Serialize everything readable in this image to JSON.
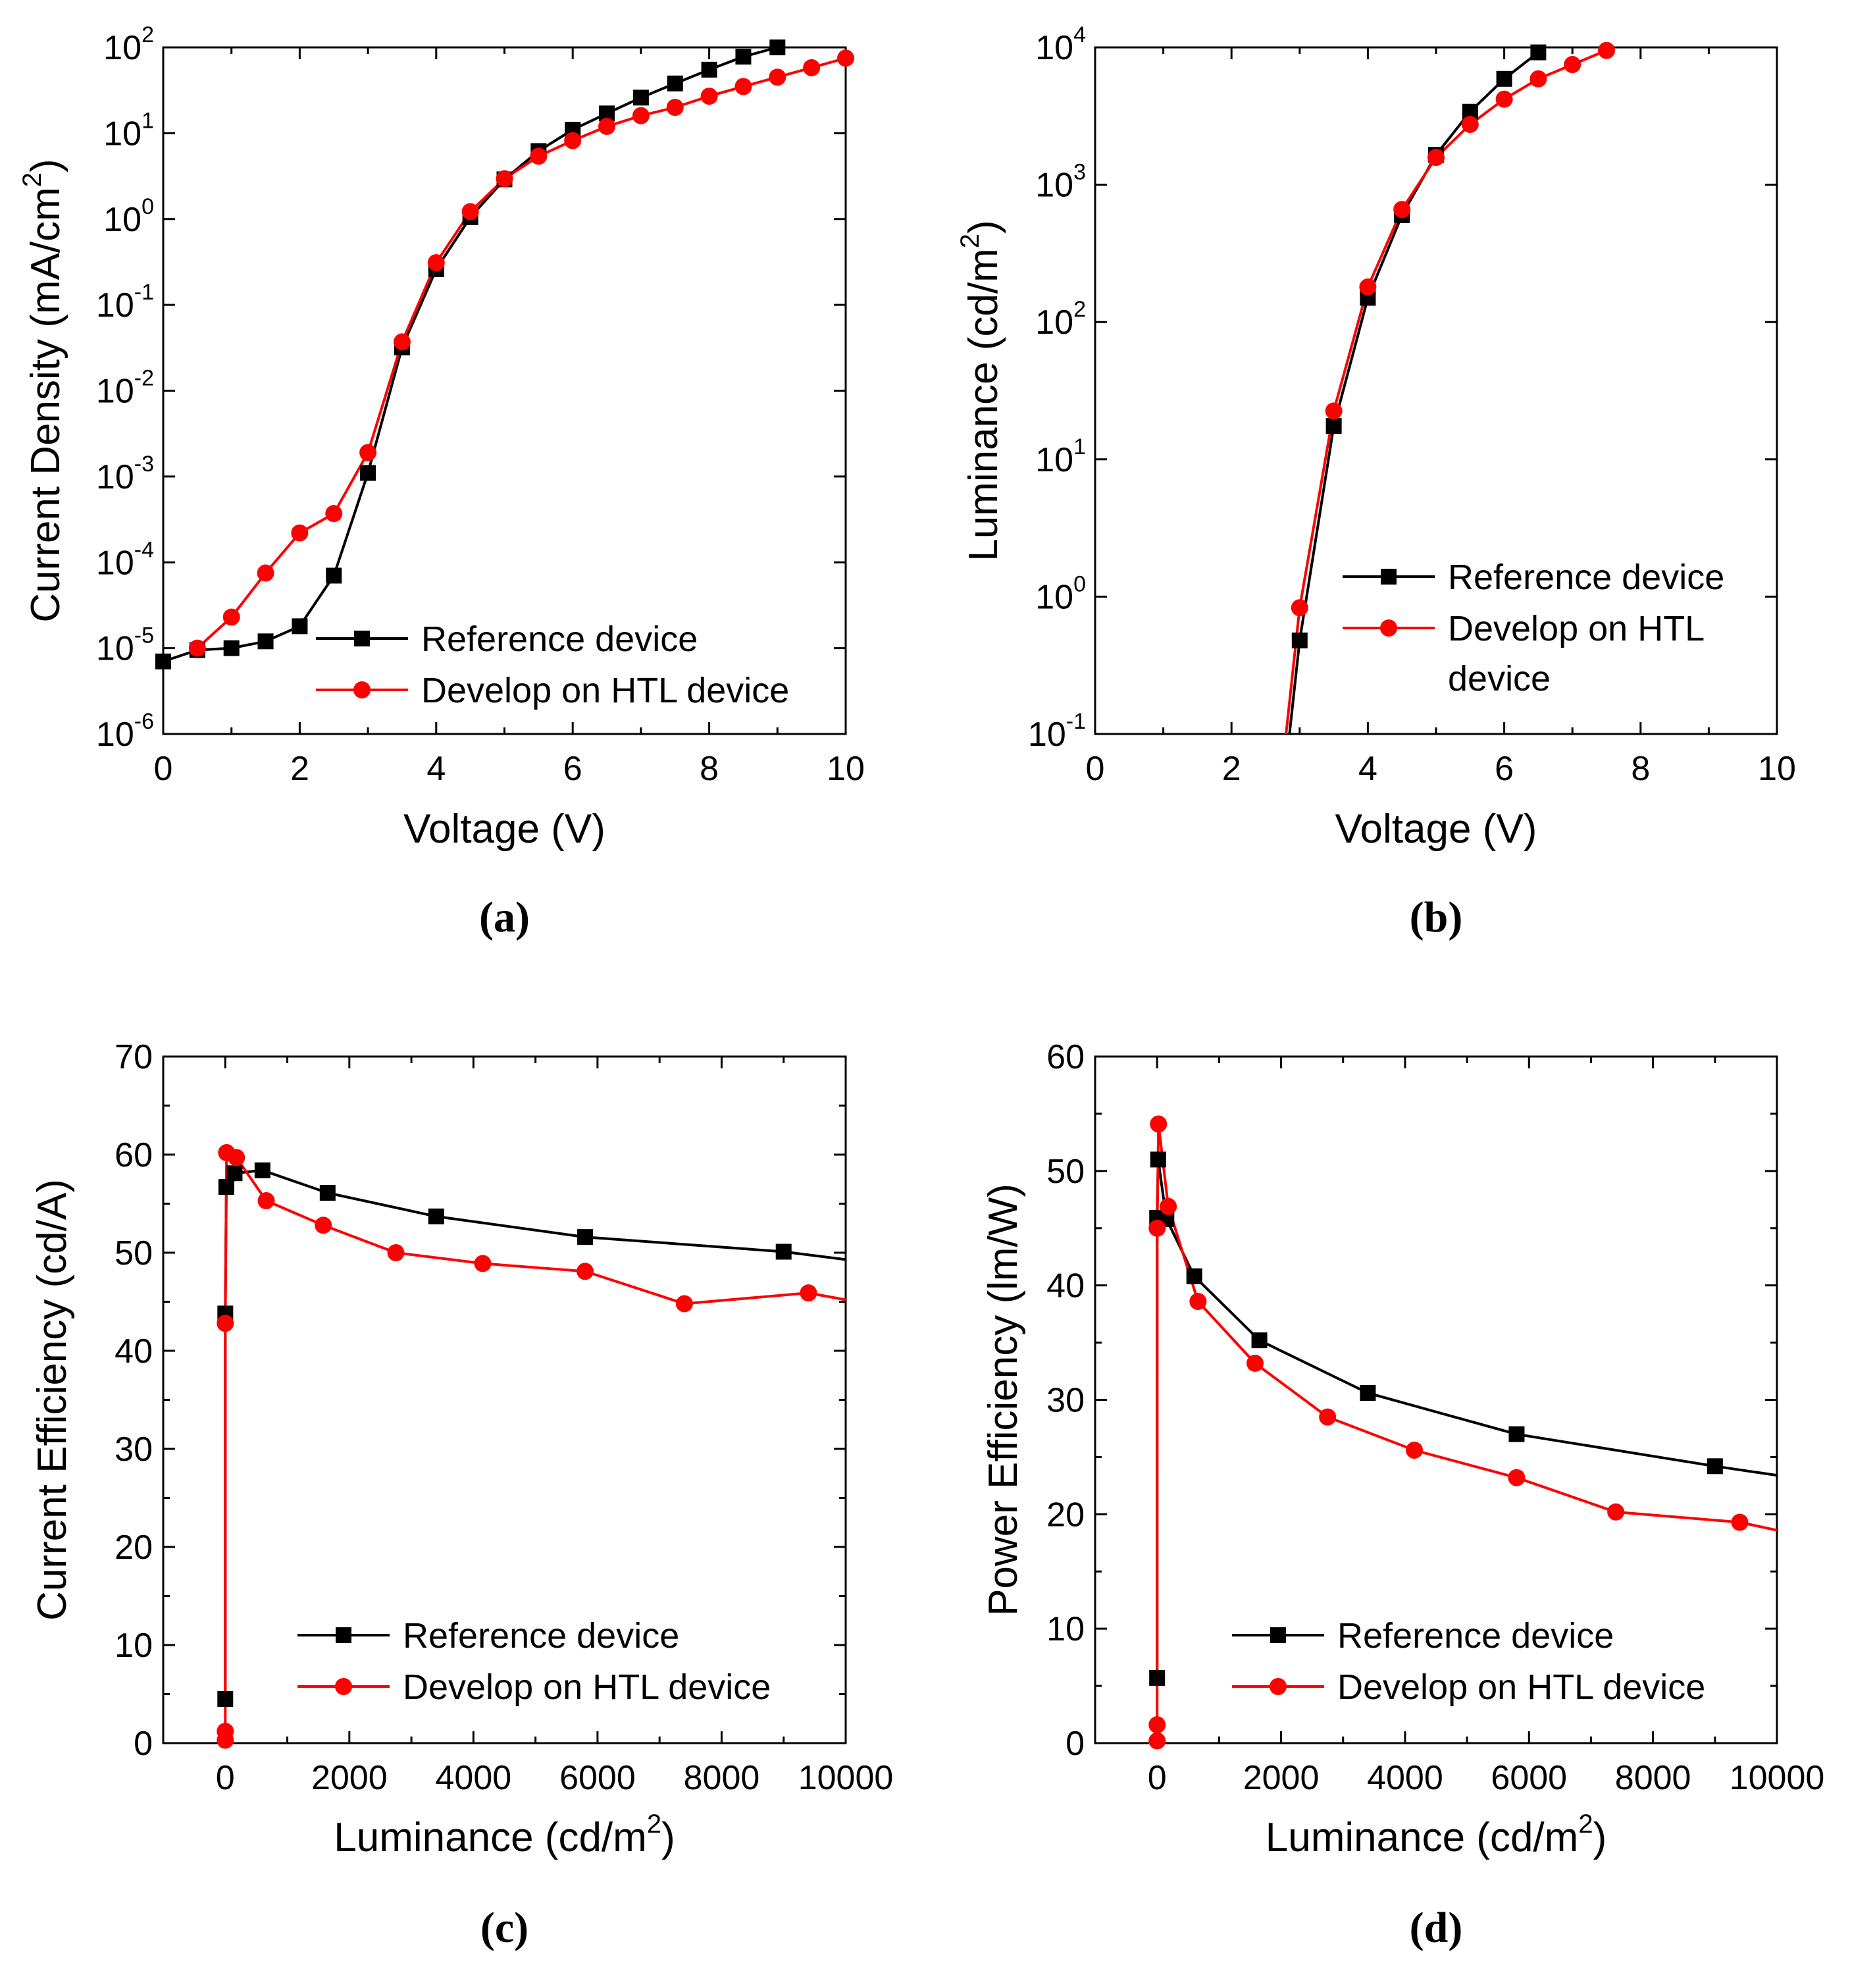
{
  "figure": {
    "legend_entries": [
      "Reference device",
      "Develop on HTL device"
    ],
    "colors": {
      "reference": "#000000",
      "develop": "#ff0000",
      "axis": "#000000"
    }
  },
  "chart_data": [
    {
      "panel": "(a)",
      "type": "line",
      "xlabel": "Voltage (V)",
      "ylabel_base": "Current Density (mA/cm",
      "ylabel_sup": "2",
      "ylabel_end": ")",
      "xscale": "linear",
      "yscale": "log",
      "xlim": [
        0,
        10
      ],
      "ylim": [
        1e-06,
        100
      ],
      "xticks": [
        "0",
        "2",
        "4",
        "6",
        "8",
        "10"
      ],
      "yticks": [
        {
          "base": "10",
          "exp": "-6"
        },
        {
          "base": "10",
          "exp": "-5"
        },
        {
          "base": "10",
          "exp": "-4"
        },
        {
          "base": "10",
          "exp": "-3"
        },
        {
          "base": "10",
          "exp": "-2"
        },
        {
          "base": "10",
          "exp": "-1"
        },
        {
          "base": "10",
          "exp": "0"
        },
        {
          "base": "10",
          "exp": "1"
        },
        {
          "base": "10",
          "exp": "2"
        }
      ],
      "legend_position": "bottom-right",
      "series": [
        {
          "name": "Reference device",
          "marker": "square",
          "x": [
            0,
            0.5,
            1,
            1.5,
            2,
            2.5,
            3,
            3.5,
            4,
            4.5,
            5,
            5.5,
            6,
            6.5,
            7,
            7.5,
            8,
            8.5,
            9
          ],
          "y": [
            7e-06,
            9.5e-06,
            1e-05,
            1.2e-05,
            1.8e-05,
            7e-05,
            0.0011,
            0.032,
            0.26,
            1.05,
            2.9,
            6.2,
            11,
            17,
            26,
            38,
            55,
            78,
            100
          ]
        },
        {
          "name": "Develop on HTL device",
          "marker": "circle",
          "x": [
            0.5,
            1,
            1.5,
            2,
            2.5,
            3,
            3.5,
            4,
            4.5,
            5,
            5.5,
            6,
            6.5,
            7,
            7.5,
            8,
            8.5,
            9,
            9.5,
            10
          ],
          "y": [
            1e-05,
            2.3e-05,
            7.5e-05,
            0.00022,
            0.00037,
            0.0019,
            0.037,
            0.31,
            1.22,
            2.95,
            5.4,
            8.2,
            12,
            16,
            20,
            27,
            35,
            45,
            58,
            75
          ]
        }
      ]
    },
    {
      "panel": "(b)",
      "type": "line",
      "xlabel": "Voltage (V)",
      "ylabel_base": "Luminance (cd/m",
      "ylabel_sup": "2",
      "ylabel_end": ")",
      "xscale": "linear",
      "yscale": "log",
      "xlim": [
        0,
        10
      ],
      "ylim": [
        0.1,
        10000
      ],
      "xticks": [
        "0",
        "2",
        "4",
        "6",
        "8",
        "10"
      ],
      "yticks": [
        {
          "base": "10",
          "exp": "-1"
        },
        {
          "base": "10",
          "exp": "0"
        },
        {
          "base": "10",
          "exp": "1"
        },
        {
          "base": "10",
          "exp": "2"
        },
        {
          "base": "10",
          "exp": "3"
        },
        {
          "base": "10",
          "exp": "4"
        }
      ],
      "legend_position": "middle-right",
      "series": [
        {
          "name": "Reference device",
          "marker": "square",
          "x": [
            2.85,
            3,
            3.5,
            4,
            4.5,
            5,
            5.5,
            6,
            6.5
          ],
          "y": [
            0.1,
            0.48,
            17.5,
            150,
            600,
            1650,
            3400,
            5900,
            9200
          ],
          "marker_from_index": 1
        },
        {
          "name": "Develop on HTL device",
          "name_lines": [
            "Develop on HTL",
            "device"
          ],
          "marker": "circle",
          "x": [
            2.8,
            3,
            3.5,
            4,
            4.5,
            5,
            5.5,
            6,
            6.5,
            7,
            7.5
          ],
          "y": [
            0.1,
            0.83,
            22.5,
            180,
            660,
            1580,
            2750,
            4200,
            5900,
            7500,
            9500
          ],
          "marker_from_index": 1
        }
      ]
    },
    {
      "panel": "(c)",
      "type": "line",
      "xlabel_base": "Luminance (cd/m",
      "xlabel_sup": "2",
      "xlabel_end": ")",
      "ylabel": "Current Efficiency (cd/A)",
      "xscale": "linear",
      "yscale": "linear",
      "xlim": [
        -1000,
        10000
      ],
      "ylim": [
        0,
        70
      ],
      "xticks": [
        "0",
        "2000",
        "4000",
        "6000",
        "8000",
        "10000"
      ],
      "yticks": [
        "0",
        "10",
        "20",
        "30",
        "40",
        "50",
        "60",
        "70"
      ],
      "legend_position": "bottom-right",
      "series": [
        {
          "name": "Reference device",
          "marker": "square",
          "x": [
            0,
            0.5,
            17,
            150,
            600,
            1650,
            3400,
            5800,
            9000,
            10000
          ],
          "y": [
            4.5,
            43.8,
            56.7,
            58.1,
            58.4,
            56.1,
            53.7,
            51.6,
            50.1,
            49.3
          ],
          "marker_count": 9
        },
        {
          "name": "Develop on HTL device",
          "marker": "circle",
          "x": [
            0,
            0.3,
            0.8,
            22,
            180,
            660,
            1580,
            2750,
            4150,
            5800,
            7400,
            9400,
            10000
          ],
          "y": [
            0.3,
            1.2,
            42.8,
            60.2,
            59.7,
            55.3,
            52.8,
            50.0,
            48.9,
            48.1,
            44.8,
            45.9,
            45.2
          ],
          "marker_count": 12
        }
      ]
    },
    {
      "panel": "(d)",
      "type": "line",
      "xlabel_base": "Luminance (cd/m",
      "xlabel_sup": "2",
      "xlabel_end": ")",
      "ylabel": "Power Efficiency (lm/W)",
      "xscale": "linear",
      "yscale": "linear",
      "xlim": [
        -1000,
        10000
      ],
      "ylim": [
        0,
        60
      ],
      "xticks": [
        "0",
        "2000",
        "4000",
        "6000",
        "8000",
        "10000"
      ],
      "yticks": [
        "0",
        "10",
        "20",
        "30",
        "40",
        "50",
        "60"
      ],
      "legend_position": "bottom-right",
      "series": [
        {
          "name": "Reference device",
          "marker": "square",
          "x": [
            0,
            0.5,
            17,
            150,
            600,
            1650,
            3400,
            5800,
            9000,
            10000
          ],
          "y": [
            5.7,
            45.9,
            51.0,
            45.8,
            40.8,
            35.2,
            30.6,
            27.0,
            24.2,
            23.4
          ],
          "marker_count": 9
        },
        {
          "name": "Develop on HTL device",
          "marker": "circle",
          "x": [
            0,
            0.3,
            0.8,
            22,
            180,
            660,
            1580,
            2750,
            4150,
            5800,
            7400,
            9400,
            10000
          ],
          "y": [
            0.2,
            1.6,
            45.0,
            54.1,
            46.9,
            38.6,
            33.2,
            28.5,
            25.6,
            23.2,
            20.2,
            19.3,
            18.6
          ],
          "marker_count": 12
        }
      ]
    }
  ]
}
